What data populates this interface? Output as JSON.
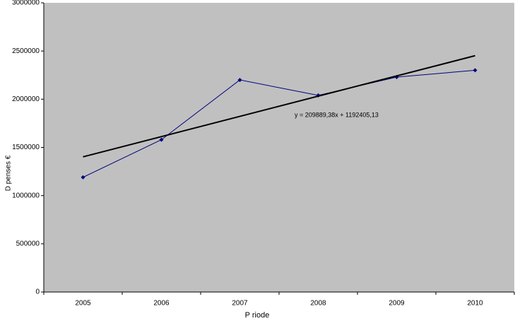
{
  "chart_data": {
    "type": "line",
    "x_label": "P riode",
    "y_label": "D penses €",
    "categories": [
      "2005",
      "2006",
      "2007",
      "2008",
      "2009",
      "2010"
    ],
    "series": [
      {
        "color": "#000080",
        "values": [
          1190000,
          1580000,
          2200000,
          2040000,
          2230000,
          2300000
        ]
      }
    ],
    "trendline": {
      "label": "y = 209889,38x + 1192405,13",
      "slope": 209889.38,
      "intercept": 1192405.13,
      "color": "#000000"
    },
    "ylim": [
      0,
      3000000
    ],
    "yticks": [
      0,
      500000,
      1000000,
      1500000,
      2000000,
      2500000,
      3000000
    ],
    "plot_background": "#c0c0c0"
  }
}
